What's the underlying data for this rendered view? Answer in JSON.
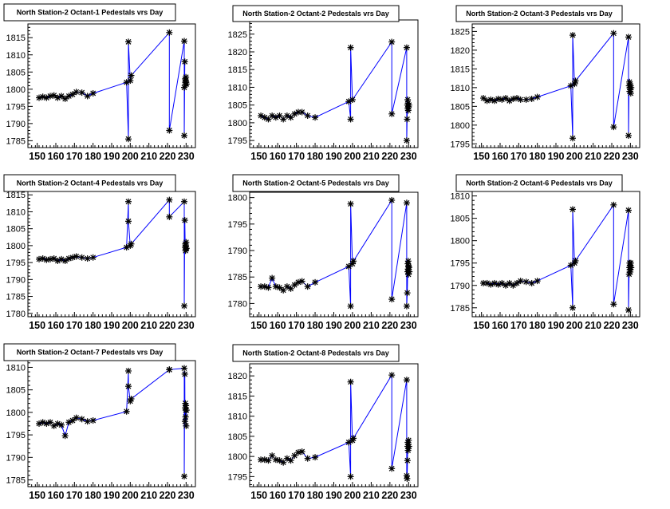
{
  "chart_data": [
    {
      "type": "line",
      "title": "North Station-2 Octant-1 Pedestals vrs Day",
      "xlim": [
        145,
        235
      ],
      "ylim": [
        1783,
        1819
      ],
      "xticks": [
        150,
        160,
        170,
        180,
        190,
        200,
        210,
        220,
        230
      ],
      "yticks": [
        1785,
        1790,
        1795,
        1800,
        1805,
        1810,
        1815
      ],
      "line_color": "#0000ff",
      "points": [
        [
          151,
          1797.5
        ],
        [
          153,
          1797.8
        ],
        [
          155,
          1797.5
        ],
        [
          157,
          1798
        ],
        [
          159,
          1798.2
        ],
        [
          161,
          1797.5
        ],
        [
          163,
          1798
        ],
        [
          165,
          1797.2
        ],
        [
          167,
          1798
        ],
        [
          169,
          1798.5
        ],
        [
          171,
          1799.2
        ],
        [
          174,
          1799
        ],
        [
          177,
          1798
        ],
        [
          180,
          1798.8
        ],
        [
          198,
          1802
        ],
        [
          199,
          1785.5
        ],
        [
          199,
          1813.8
        ],
        [
          200,
          1802.5
        ],
        [
          200.5,
          1804
        ],
        [
          221,
          1816.5
        ],
        [
          221,
          1788
        ],
        [
          229,
          1814
        ],
        [
          229,
          1786.5
        ],
        [
          229.3,
          1808
        ],
        [
          229,
          1800.5
        ],
        [
          229.5,
          1803
        ],
        [
          229.6,
          1802
        ],
        [
          229.7,
          1801.5
        ],
        [
          229.8,
          1802.5
        ],
        [
          229.9,
          1803.5
        ],
        [
          230,
          1802
        ],
        [
          230.2,
          1801.5
        ]
      ]
    },
    {
      "type": "line",
      "title": "North Station-2 Octant-2 Pedestals vrs Day",
      "xlim": [
        145,
        235
      ],
      "ylim": [
        1793,
        1829
      ],
      "xticks": [
        150,
        160,
        170,
        180,
        190,
        200,
        210,
        220,
        230
      ],
      "yticks": [
        1795,
        1800,
        1805,
        1810,
        1815,
        1820,
        1825
      ],
      "line_color": "#0000ff",
      "points": [
        [
          151,
          1802
        ],
        [
          153,
          1801.5
        ],
        [
          155,
          1801
        ],
        [
          157,
          1802
        ],
        [
          159,
          1801.5
        ],
        [
          161,
          1802
        ],
        [
          163,
          1801
        ],
        [
          165,
          1802
        ],
        [
          167,
          1801.5
        ],
        [
          169,
          1802.5
        ],
        [
          171,
          1803
        ],
        [
          173,
          1803
        ],
        [
          176,
          1802
        ],
        [
          180,
          1801.5
        ],
        [
          198,
          1806
        ],
        [
          199,
          1801
        ],
        [
          199,
          1821.2
        ],
        [
          200,
          1806.5
        ],
        [
          221,
          1822.8
        ],
        [
          221,
          1802.5
        ],
        [
          229,
          1821.2
        ],
        [
          229,
          1795
        ],
        [
          229.2,
          1801
        ],
        [
          229.4,
          1805
        ],
        [
          229.5,
          1806.5
        ],
        [
          229.6,
          1804
        ],
        [
          229.7,
          1805.5
        ],
        [
          229.8,
          1803.5
        ],
        [
          230,
          1804.5
        ],
        [
          230.2,
          1805
        ]
      ]
    },
    {
      "type": "line",
      "title": "North Station-2 Octant-3 Pedestals vrs Day",
      "xlim": [
        145,
        235
      ],
      "ylim": [
        1794,
        1827
      ],
      "xticks": [
        150,
        160,
        170,
        180,
        190,
        200,
        210,
        220,
        230
      ],
      "yticks": [
        1795,
        1800,
        1805,
        1810,
        1815,
        1820,
        1825
      ],
      "line_color": "#0000ff",
      "points": [
        [
          151,
          1807.2
        ],
        [
          153,
          1806.5
        ],
        [
          155,
          1806.8
        ],
        [
          157,
          1806.5
        ],
        [
          159,
          1807
        ],
        [
          161,
          1806.8
        ],
        [
          163,
          1807.2
        ],
        [
          165,
          1806.5
        ],
        [
          167,
          1807
        ],
        [
          169,
          1807.2
        ],
        [
          171,
          1806.8
        ],
        [
          174,
          1806.8
        ],
        [
          177,
          1807
        ],
        [
          180,
          1807.5
        ],
        [
          198,
          1810.5
        ],
        [
          199,
          1796.5
        ],
        [
          199,
          1824
        ],
        [
          200,
          1811
        ],
        [
          200.5,
          1811.8
        ],
        [
          221,
          1824.5
        ],
        [
          221,
          1799.5
        ],
        [
          229,
          1823.5
        ],
        [
          229,
          1797.2
        ],
        [
          229.3,
          1810.5
        ],
        [
          229.5,
          1811.5
        ],
        [
          229.6,
          1809
        ],
        [
          229.7,
          1810
        ],
        [
          229.8,
          1811
        ],
        [
          229.9,
          1809.5
        ],
        [
          230,
          1810.5
        ],
        [
          230.2,
          1808.5
        ],
        [
          230.4,
          1810
        ]
      ]
    },
    {
      "type": "line",
      "title": "North Station-2 Octant-4 Pedestals vrs Day",
      "xlim": [
        145,
        235
      ],
      "ylim": [
        1779,
        1816
      ],
      "xticks": [
        150,
        160,
        170,
        180,
        190,
        200,
        210,
        220,
        230
      ],
      "yticks": [
        1780,
        1785,
        1790,
        1795,
        1800,
        1805,
        1810,
        1815
      ],
      "line_color": "#0000ff",
      "points": [
        [
          151,
          1796
        ],
        [
          153,
          1796.2
        ],
        [
          155,
          1795.8
        ],
        [
          157,
          1796
        ],
        [
          159,
          1796.2
        ],
        [
          161,
          1795.5
        ],
        [
          163,
          1796
        ],
        [
          165,
          1795.5
        ],
        [
          167,
          1796.2
        ],
        [
          169,
          1796.5
        ],
        [
          171,
          1796.8
        ],
        [
          174,
          1796.5
        ],
        [
          177,
          1796.2
        ],
        [
          180,
          1796.5
        ],
        [
          198,
          1799.5
        ],
        [
          199,
          1813
        ],
        [
          199,
          1807.2
        ],
        [
          200,
          1800
        ],
        [
          200.5,
          1800.5
        ],
        [
          221,
          1813.5
        ],
        [
          221,
          1808.5
        ],
        [
          229,
          1813
        ],
        [
          229,
          1782.2
        ],
        [
          229.3,
          1807.5
        ],
        [
          229.5,
          1799.5
        ],
        [
          229.6,
          1800.5
        ],
        [
          229.7,
          1798.5
        ],
        [
          229.8,
          1800
        ],
        [
          229.9,
          1799
        ],
        [
          230,
          1801
        ],
        [
          230.2,
          1799.2
        ]
      ]
    },
    {
      "type": "line",
      "title": "North Station-2 Octant-5 Pedestals vrs Day",
      "xlim": [
        145,
        235
      ],
      "ylim": [
        1777.5,
        1801
      ],
      "xticks": [
        150,
        160,
        170,
        180,
        190,
        200,
        210,
        220,
        230
      ],
      "yticks": [
        1780,
        1785,
        1790,
        1795,
        1800
      ],
      "line_color": "#0000ff",
      "points": [
        [
          151,
          1783.2
        ],
        [
          153,
          1783.2
        ],
        [
          155,
          1783
        ],
        [
          157,
          1784.8
        ],
        [
          159,
          1783.2
        ],
        [
          161,
          1783
        ],
        [
          163,
          1782.5
        ],
        [
          165,
          1783.2
        ],
        [
          167,
          1782.8
        ],
        [
          169,
          1783.5
        ],
        [
          171,
          1784
        ],
        [
          173,
          1784.2
        ],
        [
          176,
          1783.2
        ],
        [
          180,
          1784
        ],
        [
          198,
          1787
        ],
        [
          199,
          1779.5
        ],
        [
          199,
          1798.8
        ],
        [
          200,
          1787.5
        ],
        [
          200.5,
          1788
        ],
        [
          221,
          1799.5
        ],
        [
          221,
          1780.8
        ],
        [
          229,
          1799
        ],
        [
          229,
          1779.5
        ],
        [
          229.3,
          1782
        ],
        [
          229.5,
          1786
        ],
        [
          229.6,
          1787.5
        ],
        [
          229.7,
          1786.5
        ],
        [
          229.8,
          1788
        ],
        [
          229.9,
          1785.5
        ],
        [
          230,
          1787
        ],
        [
          230.2,
          1786.8
        ],
        [
          230.4,
          1786
        ]
      ]
    },
    {
      "type": "line",
      "title": "North Station-2 Octant-6 Pedestals vrs Day",
      "xlim": [
        145,
        235
      ],
      "ylim": [
        1783,
        1811
      ],
      "xticks": [
        150,
        160,
        170,
        180,
        190,
        200,
        210,
        220,
        230
      ],
      "yticks": [
        1785,
        1790,
        1795,
        1800,
        1805,
        1810
      ],
      "line_color": "#0000ff",
      "points": [
        [
          151,
          1790.5
        ],
        [
          153,
          1790.5
        ],
        [
          155,
          1790.2
        ],
        [
          157,
          1790.5
        ],
        [
          159,
          1790.2
        ],
        [
          161,
          1790.5
        ],
        [
          163,
          1790
        ],
        [
          165,
          1790.5
        ],
        [
          167,
          1790
        ],
        [
          169,
          1790.5
        ],
        [
          171,
          1791
        ],
        [
          174,
          1790.8
        ],
        [
          177,
          1790.5
        ],
        [
          180,
          1791
        ],
        [
          198,
          1794.5
        ],
        [
          199,
          1785
        ],
        [
          199,
          1807
        ],
        [
          200,
          1795
        ],
        [
          200.5,
          1795.5
        ],
        [
          221,
          1808
        ],
        [
          221,
          1785.8
        ],
        [
          229,
          1806.8
        ],
        [
          229,
          1784.5
        ],
        [
          229.3,
          1792.5
        ],
        [
          229.5,
          1794
        ],
        [
          229.6,
          1795
        ],
        [
          229.7,
          1793.5
        ],
        [
          229.8,
          1794.5
        ],
        [
          229.9,
          1793
        ],
        [
          230,
          1794
        ],
        [
          230.2,
          1795
        ],
        [
          230.4,
          1794
        ]
      ]
    },
    {
      "type": "line",
      "title": "North Station-2 Octant-7 Pedestals vrs Day",
      "xlim": [
        145,
        235
      ],
      "ylim": [
        1783.5,
        1811.5
      ],
      "xticks": [
        150,
        160,
        170,
        180,
        190,
        200,
        210,
        220,
        230
      ],
      "yticks": [
        1785,
        1790,
        1795,
        1800,
        1805,
        1810
      ],
      "line_color": "#0000ff",
      "points": [
        [
          151,
          1797.5
        ],
        [
          153,
          1797.8
        ],
        [
          155,
          1797.5
        ],
        [
          157,
          1797.8
        ],
        [
          159,
          1797
        ],
        [
          161,
          1797.5
        ],
        [
          163,
          1797.2
        ],
        [
          165,
          1794.8
        ],
        [
          167,
          1797.8
        ],
        [
          169,
          1798.2
        ],
        [
          171,
          1798.8
        ],
        [
          174,
          1798.5
        ],
        [
          177,
          1798
        ],
        [
          180,
          1798.2
        ],
        [
          198,
          1800.2
        ],
        [
          199,
          1809.2
        ],
        [
          199,
          1805.8
        ],
        [
          200,
          1802.5
        ],
        [
          200.5,
          1803
        ],
        [
          221,
          1809.5
        ],
        [
          221,
          1809.5
        ],
        [
          229,
          1809.8
        ],
        [
          229,
          1785.8
        ],
        [
          229.3,
          1808.5
        ],
        [
          229.4,
          1798
        ],
        [
          229.5,
          1801
        ],
        [
          229.6,
          1802
        ],
        [
          229.7,
          1799
        ],
        [
          229.8,
          1800.5
        ],
        [
          229.9,
          1801.5
        ],
        [
          230,
          1797
        ],
        [
          230.2,
          1800.5
        ]
      ]
    },
    {
      "type": "line",
      "title": "North Station-2 Octant-8 Pedestals vrs Day",
      "xlim": [
        145,
        235
      ],
      "ylim": [
        1792.5,
        1823
      ],
      "xticks": [
        150,
        160,
        170,
        180,
        190,
        200,
        210,
        220,
        230
      ],
      "yticks": [
        1795,
        1800,
        1805,
        1810,
        1815,
        1820
      ],
      "line_color": "#0000ff",
      "points": [
        [
          151,
          1799.2
        ],
        [
          153,
          1799.2
        ],
        [
          155,
          1799
        ],
        [
          157,
          1800.2
        ],
        [
          159,
          1799.2
        ],
        [
          161,
          1799
        ],
        [
          163,
          1798.5
        ],
        [
          165,
          1799.5
        ],
        [
          167,
          1799
        ],
        [
          169,
          1800.2
        ],
        [
          171,
          1801
        ],
        [
          173,
          1801.2
        ],
        [
          176,
          1799.5
        ],
        [
          180,
          1799.8
        ],
        [
          198,
          1803.5
        ],
        [
          199,
          1795
        ],
        [
          199,
          1818.5
        ],
        [
          200,
          1804
        ],
        [
          200.5,
          1804.5
        ],
        [
          221,
          1820.2
        ],
        [
          221,
          1797
        ],
        [
          229,
          1819
        ],
        [
          229,
          1795.2
        ],
        [
          229.2,
          1794.5
        ],
        [
          229.4,
          1799
        ],
        [
          229.5,
          1802.5
        ],
        [
          229.6,
          1803.5
        ],
        [
          229.7,
          1801.5
        ],
        [
          229.8,
          1803
        ],
        [
          229.9,
          1802
        ],
        [
          230,
          1804
        ],
        [
          230.2,
          1802.5
        ]
      ]
    }
  ]
}
